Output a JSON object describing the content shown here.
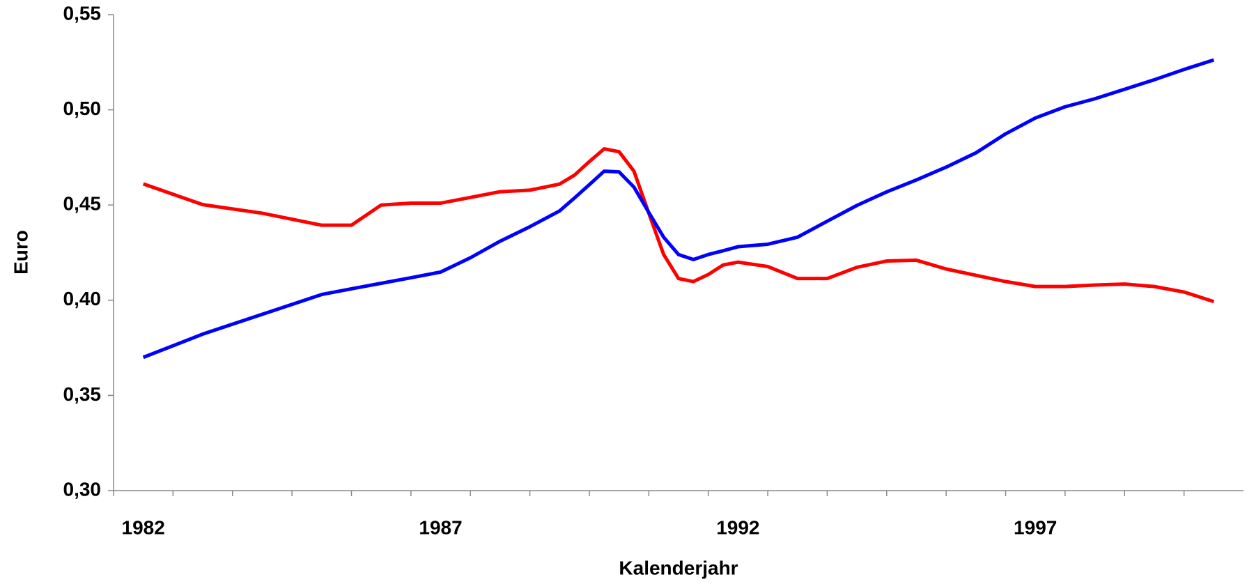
{
  "chart_data": {
    "type": "line",
    "xlabel": "Kalenderjahr",
    "ylabel": "Euro",
    "x": [
      1982,
      1983,
      1984,
      1985,
      1985.5,
      1986,
      1986.5,
      1987,
      1987.5,
      1988,
      1988.5,
      1989,
      1989.25,
      1989.5,
      1989.75,
      1990,
      1990.25,
      1990.5,
      1990.75,
      1991,
      1991.25,
      1991.5,
      1991.75,
      1992,
      1992.5,
      1993,
      1993.5,
      1994,
      1994.5,
      1995,
      1995.5,
      1996,
      1996.5,
      1997,
      1997.5,
      1998,
      1998.5,
      1999,
      1999.5,
      2000
    ],
    "series": [
      {
        "color": "#ff0000",
        "values": [
          0.4611,
          0.4502,
          0.4457,
          0.4394,
          0.4394,
          0.45,
          0.451,
          0.451,
          0.454,
          0.457,
          0.4578,
          0.461,
          0.4657,
          0.4728,
          0.4795,
          0.478,
          0.4678,
          0.4457,
          0.424,
          0.4114,
          0.4098,
          0.4135,
          0.4185,
          0.42,
          0.4177,
          0.4114,
          0.4114,
          0.4173,
          0.4206,
          0.421,
          0.4164,
          0.4131,
          0.4098,
          0.4072,
          0.4072,
          0.408,
          0.4085,
          0.4072,
          0.4043,
          0.3993
        ]
      },
      {
        "color": "#0000ff",
        "values": [
          0.37,
          0.3822,
          0.3926,
          0.403,
          0.406,
          0.4089,
          0.4118,
          0.4148,
          0.4223,
          0.431,
          0.4386,
          0.4469,
          0.4537,
          0.4607,
          0.4678,
          0.4674,
          0.4594,
          0.4461,
          0.4331,
          0.424,
          0.4214,
          0.424,
          0.426,
          0.4281,
          0.4294,
          0.4331,
          0.4415,
          0.4498,
          0.4569,
          0.4632,
          0.4699,
          0.4774,
          0.4874,
          0.4957,
          0.5016,
          0.5058,
          0.5108,
          0.5158,
          0.5212,
          0.5262
        ]
      }
    ],
    "xlim": [
      1981.5,
      2000.5
    ],
    "xticks": [
      1982,
      1987,
      1992,
      1997
    ],
    "xminorticks": [
      1981.5,
      1982.5,
      1983.5,
      1984.5,
      1985.5,
      1986.5,
      1987.5,
      1988.5,
      1989.5,
      1990.5,
      1991.5,
      1992.5,
      1993.5,
      1994.5,
      1995.5,
      1996.5,
      1997.5,
      1998.5,
      1999.5
    ],
    "ylim": [
      0.3,
      0.55
    ],
    "yticks": [
      {
        "value": 0.3,
        "label": "0,30"
      },
      {
        "value": 0.35,
        "label": "0,35"
      },
      {
        "value": 0.4,
        "label": "0,40"
      },
      {
        "value": 0.45,
        "label": "0,45"
      },
      {
        "value": 0.5,
        "label": "0,50"
      },
      {
        "value": 0.55,
        "label": "0,55"
      }
    ],
    "grid": false
  }
}
